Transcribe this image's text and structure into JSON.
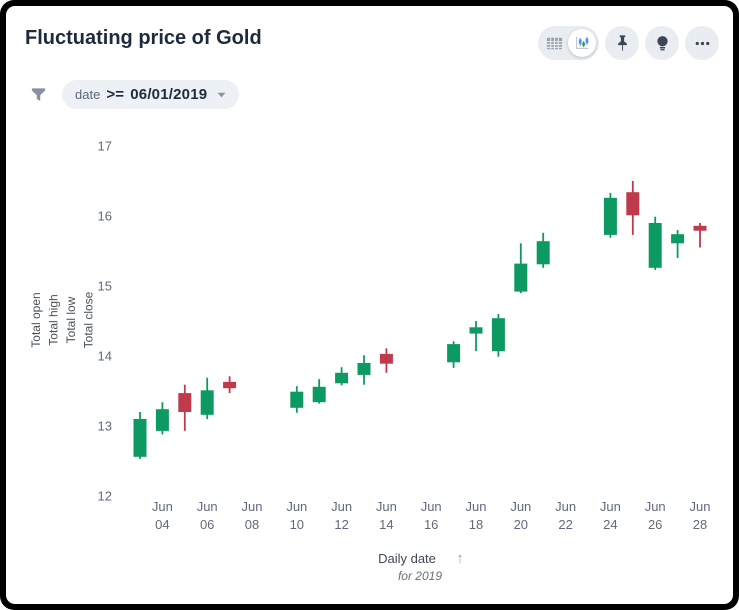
{
  "header": {
    "title": "Fluctuating price of Gold",
    "toolbar": {
      "view_toggle": [
        {
          "id": "table-view",
          "icon": "table-icon",
          "selected": false
        },
        {
          "id": "chart-view",
          "icon": "candlestick-chart-icon",
          "selected": true
        }
      ],
      "buttons": [
        {
          "id": "pin",
          "icon": "pin-icon"
        },
        {
          "id": "insights",
          "icon": "lightbulb-icon"
        },
        {
          "id": "more",
          "icon": "ellipsis-icon"
        }
      ]
    }
  },
  "filter": {
    "icon": "funnel-icon",
    "field": "date",
    "operator": ">=",
    "value": "06/01/2019"
  },
  "chart_data": {
    "type": "candlestick",
    "title": "Fluctuating price of Gold",
    "xlabel": "Daily date",
    "xlabel_note": "for 2019",
    "sort_icon": "↑",
    "ylabel_lines": [
      "Total open",
      "Total high",
      "Total low",
      "Total close"
    ],
    "ylim": [
      12,
      17
    ],
    "yticks": [
      17,
      16,
      15,
      14,
      13,
      12
    ],
    "xticks": [
      {
        "month": "Jun",
        "day": "04"
      },
      {
        "month": "Jun",
        "day": "06"
      },
      {
        "month": "Jun",
        "day": "08"
      },
      {
        "month": "Jun",
        "day": "10"
      },
      {
        "month": "Jun",
        "day": "12"
      },
      {
        "month": "Jun",
        "day": "14"
      },
      {
        "month": "Jun",
        "day": "16"
      },
      {
        "month": "Jun",
        "day": "18"
      },
      {
        "month": "Jun",
        "day": "20"
      },
      {
        "month": "Jun",
        "day": "22"
      },
      {
        "month": "Jun",
        "day": "24"
      },
      {
        "month": "Jun",
        "day": "26"
      },
      {
        "month": "Jun",
        "day": "28"
      }
    ],
    "up_color": "#0d9a62",
    "down_color": "#bf3a4a",
    "grid": false,
    "legend": false,
    "candles": [
      {
        "date": "Jun 03",
        "day": 3,
        "open": 12.56,
        "high": 13.2,
        "low": 12.53,
        "close": 13.1
      },
      {
        "date": "Jun 04",
        "day": 4,
        "open": 12.93,
        "high": 13.34,
        "low": 12.88,
        "close": 13.24
      },
      {
        "date": "Jun 05",
        "day": 5,
        "open": 13.47,
        "high": 13.59,
        "low": 12.93,
        "close": 13.2
      },
      {
        "date": "Jun 06",
        "day": 6,
        "open": 13.16,
        "high": 13.69,
        "low": 13.1,
        "close": 13.51
      },
      {
        "date": "Jun 07",
        "day": 7,
        "open": 13.63,
        "high": 13.71,
        "low": 13.47,
        "close": 13.54
      },
      {
        "date": "Jun 10",
        "day": 10,
        "open": 13.26,
        "high": 13.57,
        "low": 13.19,
        "close": 13.49
      },
      {
        "date": "Jun 11",
        "day": 11,
        "open": 13.34,
        "high": 13.67,
        "low": 13.32,
        "close": 13.56
      },
      {
        "date": "Jun 12",
        "day": 12,
        "open": 13.61,
        "high": 13.84,
        "low": 13.58,
        "close": 13.76
      },
      {
        "date": "Jun 13",
        "day": 13,
        "open": 13.73,
        "high": 14.01,
        "low": 13.59,
        "close": 13.9
      },
      {
        "date": "Jun 14",
        "day": 14,
        "open": 14.03,
        "high": 14.11,
        "low": 13.76,
        "close": 13.89
      },
      {
        "date": "Jun 17",
        "day": 17,
        "open": 13.91,
        "high": 14.21,
        "low": 13.83,
        "close": 14.17
      },
      {
        "date": "Jun 18",
        "day": 18,
        "open": 14.32,
        "high": 14.5,
        "low": 14.07,
        "close": 14.41
      },
      {
        "date": "Jun 19",
        "day": 19,
        "open": 14.07,
        "high": 14.6,
        "low": 13.99,
        "close": 14.54
      },
      {
        "date": "Jun 20",
        "day": 20,
        "open": 14.92,
        "high": 15.61,
        "low": 14.9,
        "close": 15.32
      },
      {
        "date": "Jun 21",
        "day": 21,
        "open": 15.31,
        "high": 15.76,
        "low": 15.26,
        "close": 15.64
      },
      {
        "date": "Jun 24",
        "day": 24,
        "open": 15.73,
        "high": 16.33,
        "low": 15.69,
        "close": 16.26
      },
      {
        "date": "Jun 25",
        "day": 25,
        "open": 16.34,
        "high": 16.5,
        "low": 15.73,
        "close": 16.01
      },
      {
        "date": "Jun 26",
        "day": 26,
        "open": 15.26,
        "high": 15.99,
        "low": 15.23,
        "close": 15.9
      },
      {
        "date": "Jun 27",
        "day": 27,
        "open": 15.61,
        "high": 15.8,
        "low": 15.4,
        "close": 15.74
      },
      {
        "date": "Jun 28",
        "day": 28,
        "open": 15.86,
        "high": 15.9,
        "low": 15.55,
        "close": 15.79
      }
    ],
    "layout": {
      "x0": 134,
      "x_step": 22.4,
      "day0": 3,
      "y_top": 140,
      "y_per_unit": 70,
      "y_max": 17,
      "candle_width": 13
    }
  }
}
